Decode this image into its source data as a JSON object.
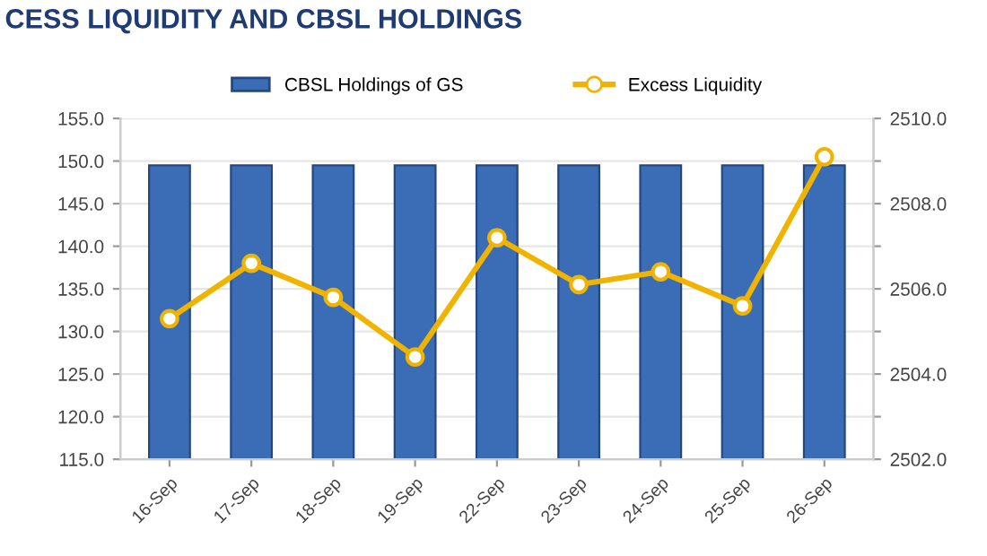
{
  "chart_data": {
    "type": "bar",
    "title": "CESS LIQUIDITY AND CBSL HOLDINGS",
    "categories": [
      "16-Sep",
      "17-Sep",
      "18-Sep",
      "19-Sep",
      "22-Sep",
      "23-Sep",
      "24-Sep",
      "25-Sep",
      "26-Sep"
    ],
    "series": [
      {
        "name": "CBSL Holdings of GS",
        "color": "#3a6db5",
        "values": [
          149.5,
          149.5,
          149.5,
          149.5,
          149.5,
          149.5,
          149.5,
          149.5,
          149.5
        ]
      },
      {
        "name": "Excess Liquidity",
        "type": "line",
        "axis": "y2",
        "color": "#f0b400",
        "marker": "circle",
        "values": [
          2505.3,
          2506.6,
          2505.8,
          2504.4,
          2507.2,
          2506.1,
          2506.4,
          2505.6,
          2509.1
        ]
      }
    ],
    "ylim": [
      115,
      155
    ],
    "yticks": [
      {
        "value": 115,
        "label": "115.0"
      },
      {
        "value": 120,
        "label": "120.0"
      },
      {
        "value": 125,
        "label": "125.0"
      },
      {
        "value": 130,
        "label": "130.0"
      },
      {
        "value": 135,
        "label": "135.0"
      },
      {
        "value": 140,
        "label": "140.0"
      },
      {
        "value": 145,
        "label": "145.0"
      },
      {
        "value": 150,
        "label": "150.0"
      },
      {
        "value": 155,
        "label": "155.0"
      }
    ],
    "y2lim": [
      2502,
      2510
    ],
    "y2ticks": [
      {
        "value": 2502,
        "label": "2502.0"
      },
      {
        "value": 2503,
        "label": null
      },
      {
        "value": 2504,
        "label": "2504.0"
      },
      {
        "value": 2505,
        "label": null
      },
      {
        "value": 2506,
        "label": "2506.0"
      },
      {
        "value": 2507,
        "label": null
      },
      {
        "value": 2508,
        "label": "2508.0"
      },
      {
        "value": 2509,
        "label": null
      },
      {
        "value": 2510,
        "label": "2510.0"
      }
    ],
    "grid": "y",
    "legend": "top"
  }
}
